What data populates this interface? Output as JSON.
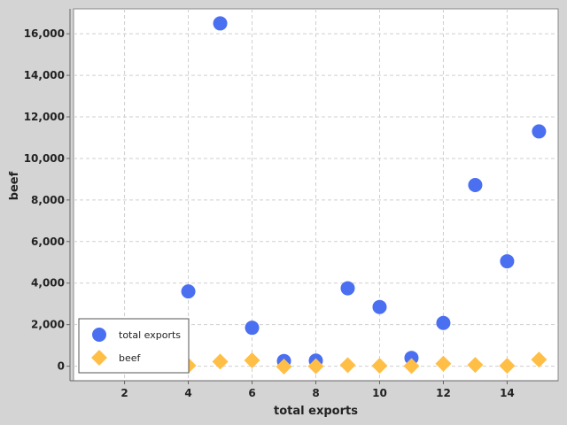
{
  "chart_data": {
    "type": "scatter",
    "xlabel": "total exports",
    "ylabel": "beef",
    "xlim": [
      0.4,
      15.6
    ],
    "ylim": [
      -700,
      17200
    ],
    "xticks": [
      2,
      4,
      6,
      8,
      10,
      12,
      14
    ],
    "xtick_labels": [
      "2",
      "4",
      "6",
      "8",
      "10",
      "12",
      "14"
    ],
    "yticks": [
      0,
      2000,
      4000,
      6000,
      8000,
      10000,
      12000,
      14000,
      16000
    ],
    "ytick_labels": [
      "0",
      "2,000",
      "4,000",
      "6,000",
      "8,000",
      "10,000",
      "12,000",
      "14,000",
      "16,000"
    ],
    "grid": true,
    "legend_position": "bottom-left",
    "series": [
      {
        "name": "total exports",
        "marker": "circle",
        "color": "#4a6ff0",
        "x": [
          4,
          5,
          6,
          7,
          8,
          9,
          10,
          11,
          12,
          13,
          14,
          15
        ],
        "y": [
          3600,
          16500,
          1850,
          250,
          270,
          3750,
          2850,
          400,
          2080,
          8720,
          5050,
          11300
        ]
      },
      {
        "name": "beef",
        "marker": "diamond",
        "color": "#ffbf47",
        "x": [
          4,
          5,
          6,
          7,
          8,
          9,
          10,
          11,
          12,
          13,
          14,
          15
        ],
        "y": [
          30,
          220,
          280,
          -20,
          0,
          50,
          20,
          10,
          120,
          60,
          20,
          320
        ]
      }
    ]
  }
}
